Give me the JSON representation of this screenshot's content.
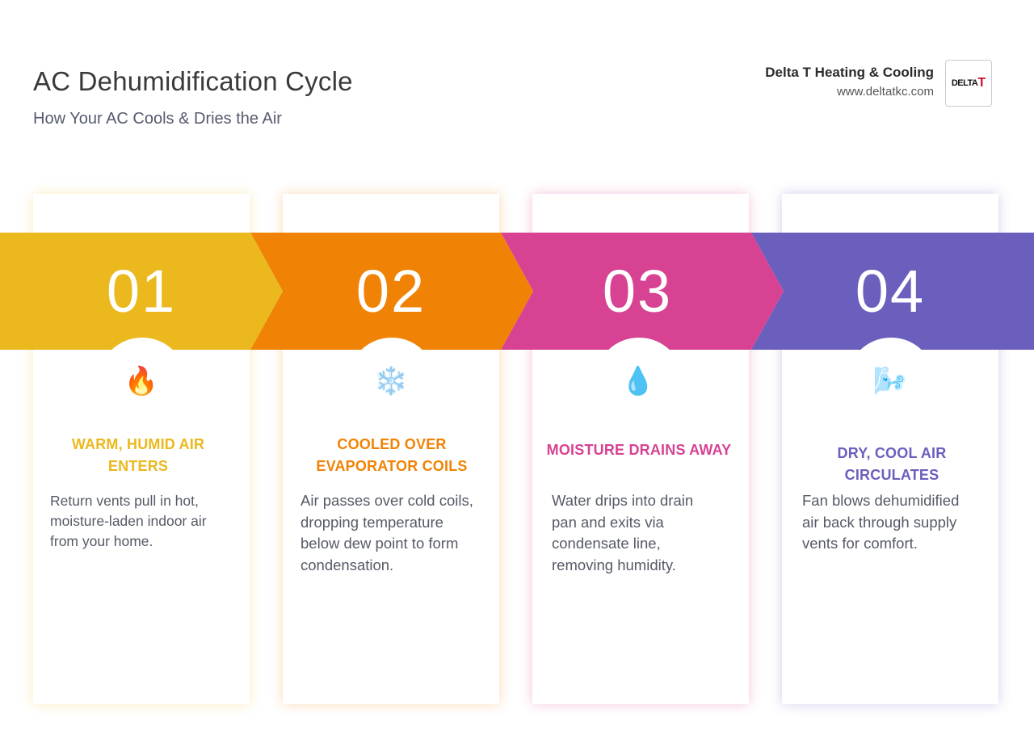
{
  "header": {
    "title": "AC Dehumidification Cycle",
    "subtitle": "How Your AC Cools & Dries the Air"
  },
  "brand": {
    "name": "Delta T Heating & Cooling",
    "url": "www.deltatkc.com",
    "logo_text": "DELTA",
    "logo_mark": "T"
  },
  "colors": {
    "step1": "#ebb81e",
    "step2": "#f08305",
    "step3": "#d74293",
    "step4": "#6b5fbe"
  },
  "steps": [
    {
      "number": "01",
      "icon": "fire-icon",
      "glyph": "🔥",
      "heading": "WARM, HUMID AIR ENTERS",
      "description": "Return vents pull in hot, moisture-laden indoor air from your home."
    },
    {
      "number": "02",
      "icon": "snowflake-icon",
      "glyph": "❄️",
      "heading": "COOLED OVER EVAPORATOR COILS",
      "description": "Air passes over cold coils, dropping temperature below dew point to form condensation."
    },
    {
      "number": "03",
      "icon": "droplet-icon",
      "glyph": "💧",
      "heading": "MOISTURE DRAINS AWAY",
      "description": "Water drips into drain pan and exits via condensate line, removing humidity."
    },
    {
      "number": "04",
      "icon": "wind-icon",
      "glyph": "🌬️",
      "heading": "DRY, COOL AIR CIRCULATES",
      "description": "Fan blows dehumidified air back through supply vents for comfort."
    }
  ]
}
